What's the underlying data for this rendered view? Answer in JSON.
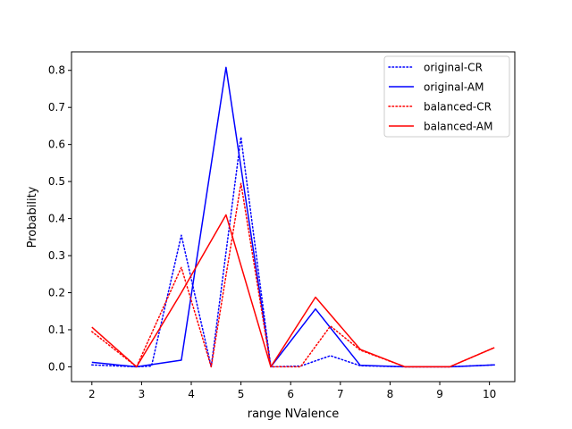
{
  "chart_data": {
    "type": "line",
    "title": "",
    "xlabel": "range NValence",
    "ylabel": "Probability",
    "xlim": [
      1.59,
      10.51
    ],
    "ylim": [
      -0.04,
      0.85
    ],
    "xticks": [
      2,
      3,
      4,
      5,
      6,
      7,
      8,
      9,
      10
    ],
    "yticks": [
      0.0,
      0.1,
      0.2,
      0.3,
      0.4,
      0.5,
      0.6,
      0.7,
      0.8
    ],
    "xtick_labels": [
      "2",
      "3",
      "4",
      "5",
      "6",
      "7",
      "8",
      "9",
      "10"
    ],
    "ytick_labels": [
      "0.0",
      "0.1",
      "0.2",
      "0.3",
      "0.4",
      "0.5",
      "0.6",
      "0.7",
      "0.8"
    ],
    "legend_position": "upper right",
    "grid": false,
    "series": [
      {
        "name": "original-CR",
        "color": "#0000ff",
        "style": "dotted",
        "points": [
          [
            2.0,
            0.005
          ],
          [
            2.9,
            0.0
          ],
          [
            3.2,
            0.002
          ],
          [
            3.8,
            0.355
          ],
          [
            4.4,
            0.0
          ],
          [
            5.0,
            0.62
          ],
          [
            5.6,
            0.0
          ],
          [
            6.2,
            0.002
          ],
          [
            6.8,
            0.03
          ],
          [
            7.4,
            0.003
          ],
          [
            8.3,
            0.0
          ],
          [
            9.2,
            0.0
          ],
          [
            10.1,
            0.005
          ]
        ]
      },
      {
        "name": "original-AM",
        "color": "#0000ff",
        "style": "solid",
        "points": [
          [
            2.0,
            0.012
          ],
          [
            2.9,
            0.0
          ],
          [
            3.8,
            0.018
          ],
          [
            4.7,
            0.808
          ],
          [
            5.6,
            0.0
          ],
          [
            6.5,
            0.156
          ],
          [
            7.4,
            0.004
          ],
          [
            8.3,
            0.0
          ],
          [
            9.2,
            0.0
          ],
          [
            10.1,
            0.005
          ]
        ]
      },
      {
        "name": "balanced-CR",
        "color": "#ff0000",
        "style": "dotted",
        "points": [
          [
            2.0,
            0.095
          ],
          [
            2.9,
            0.0
          ],
          [
            3.8,
            0.268
          ],
          [
            4.4,
            0.0
          ],
          [
            5.0,
            0.495
          ],
          [
            5.6,
            0.0
          ],
          [
            6.2,
            0.0
          ],
          [
            6.8,
            0.11
          ],
          [
            7.4,
            0.045
          ],
          [
            8.3,
            0.0
          ],
          [
            9.2,
            0.0
          ],
          [
            10.1,
            0.052
          ]
        ]
      },
      {
        "name": "balanced-AM",
        "color": "#ff0000",
        "style": "solid",
        "points": [
          [
            2.0,
            0.107
          ],
          [
            2.9,
            0.0
          ],
          [
            3.8,
            0.2
          ],
          [
            4.7,
            0.41
          ],
          [
            5.6,
            0.0
          ],
          [
            6.5,
            0.188
          ],
          [
            7.4,
            0.047
          ],
          [
            8.3,
            0.0
          ],
          [
            9.2,
            0.0
          ],
          [
            10.1,
            0.052
          ]
        ]
      }
    ]
  }
}
